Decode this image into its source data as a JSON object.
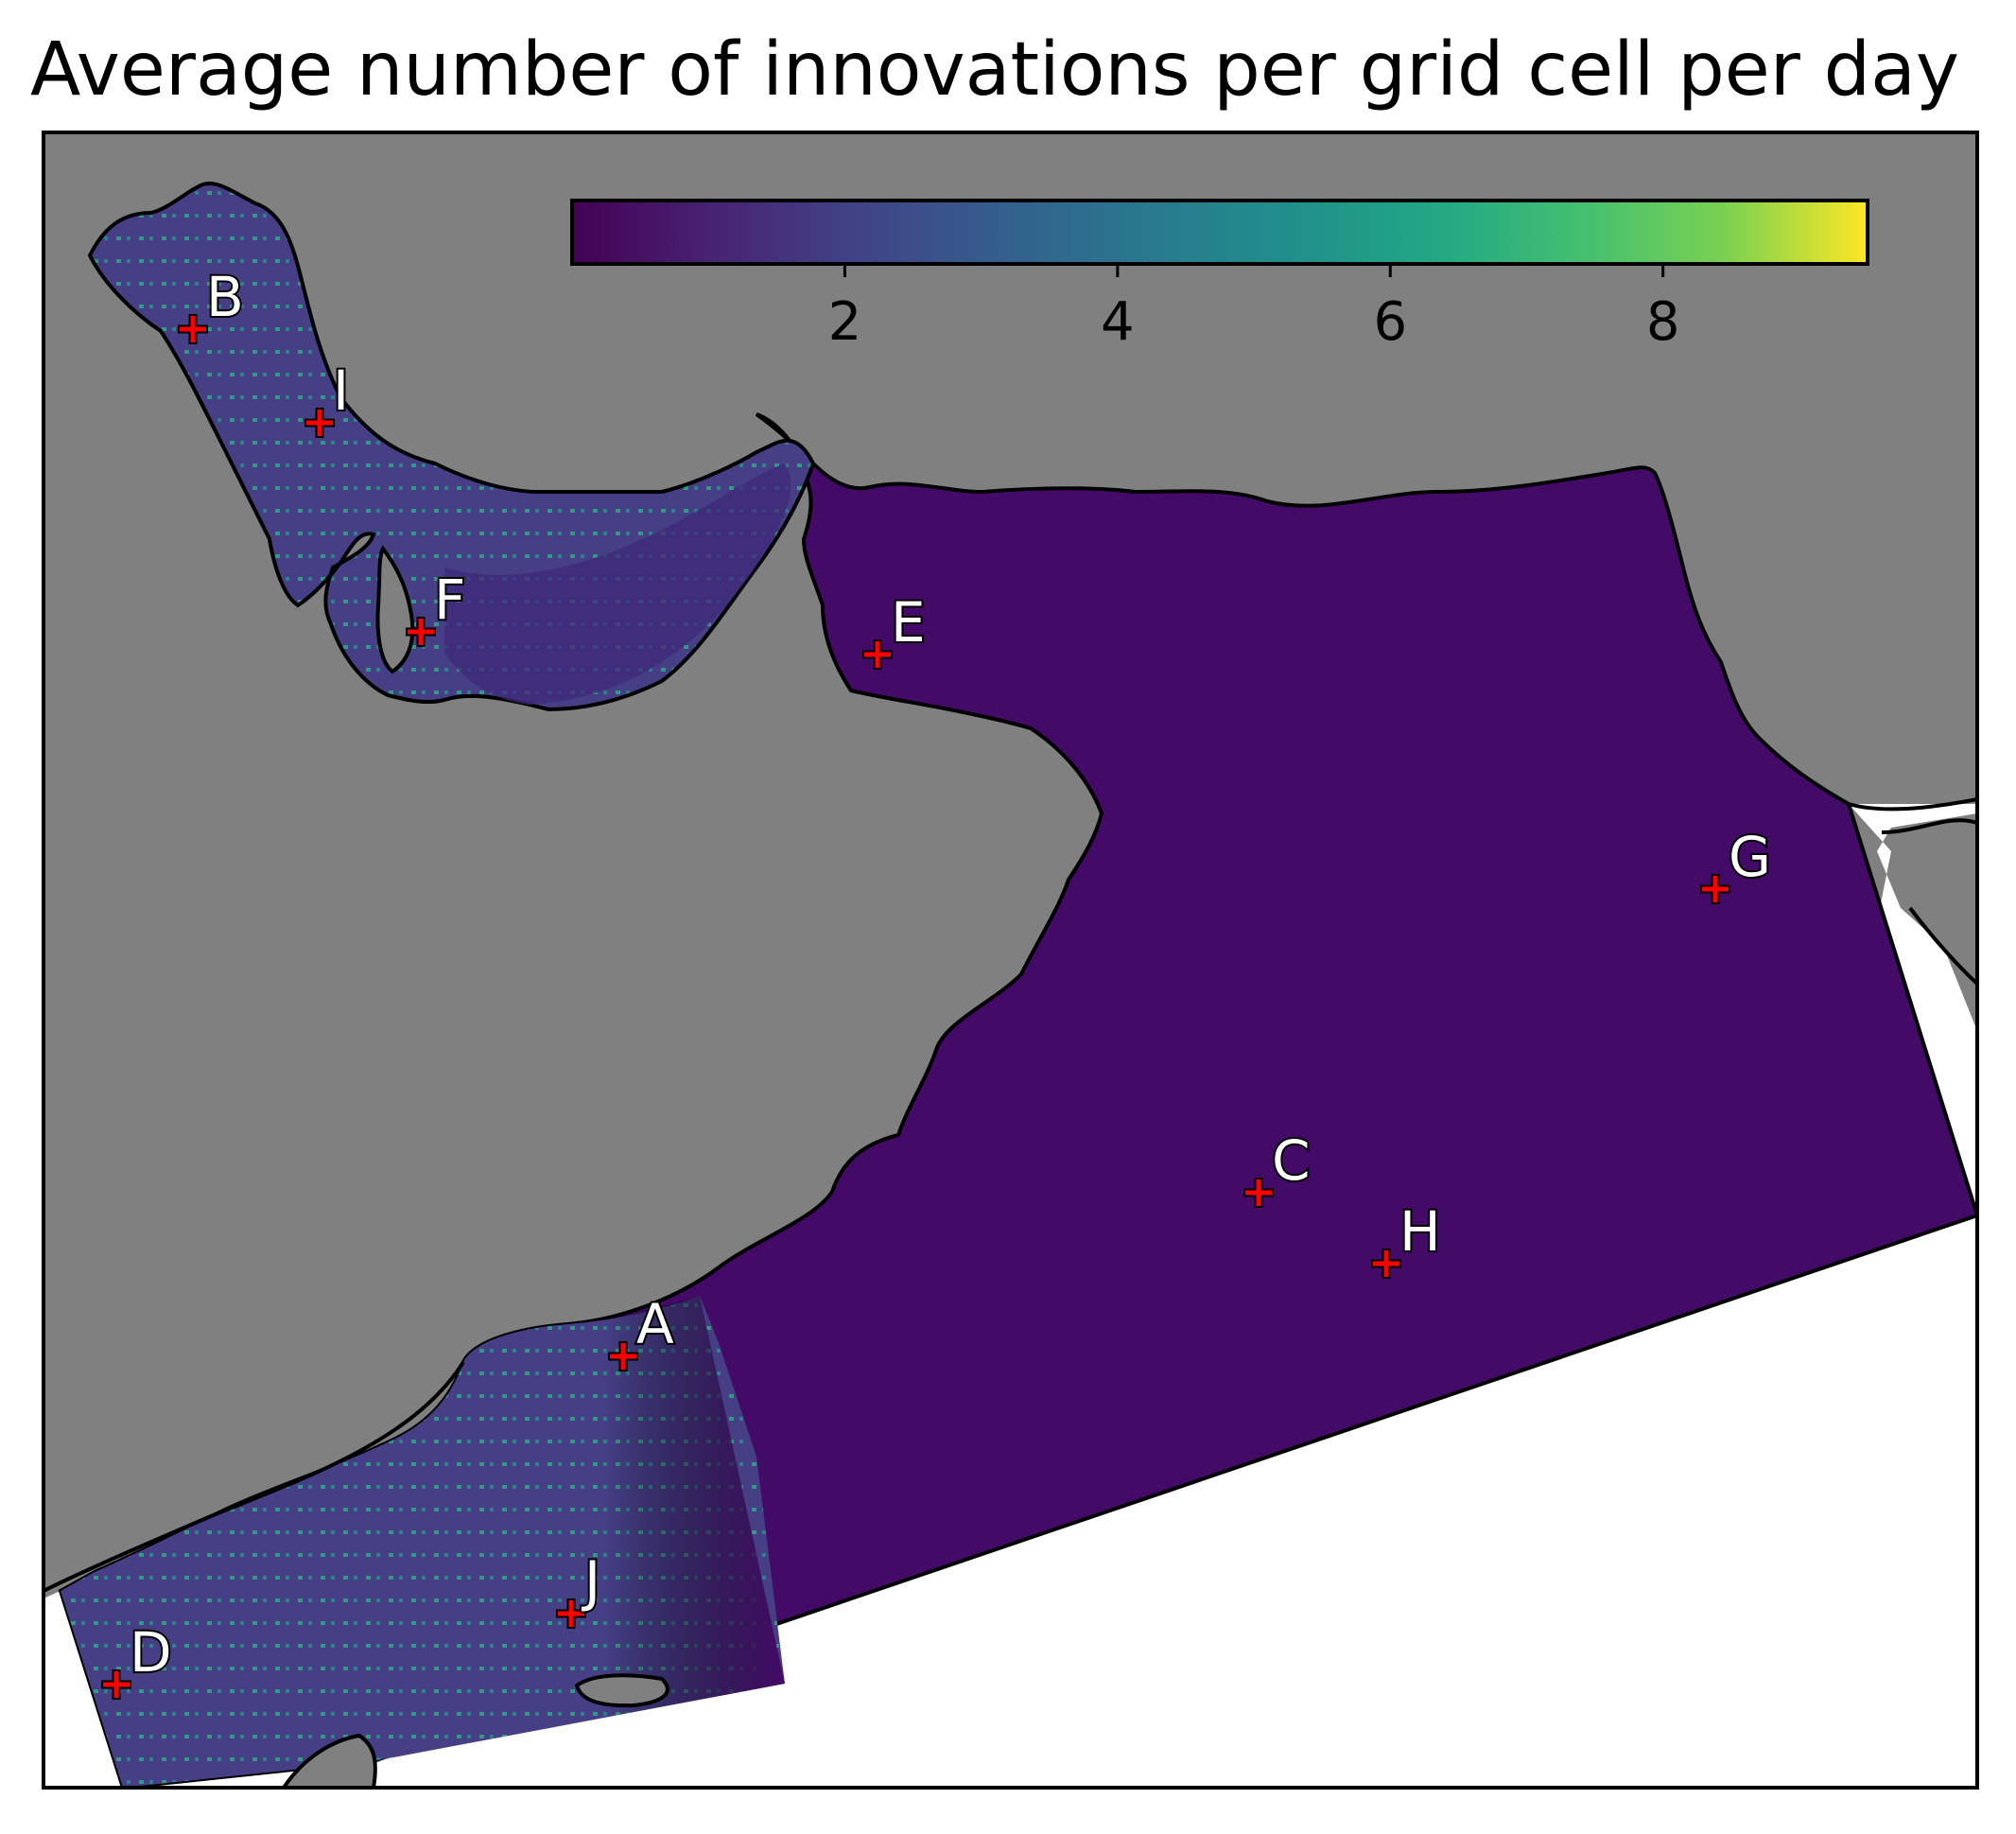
{
  "title": "Average number of innovations per grid cell per day",
  "colorbar": {
    "colormap": "viridis",
    "min": 0,
    "max": 9.5,
    "ticks": [
      {
        "value": 2,
        "label": "2"
      },
      {
        "value": 4,
        "label": "4"
      },
      {
        "value": 6,
        "label": "6"
      },
      {
        "value": 8,
        "label": "8"
      }
    ]
  },
  "colors": {
    "land": "#808080",
    "outside_domain": "#ffffff",
    "ocean_low": "#440a68",
    "ocean_mid": "#3f4a8a",
    "marker": "#ff0000",
    "coastline": "#000000"
  },
  "sites": [
    {
      "label": "A"
    },
    {
      "label": "B"
    },
    {
      "label": "C"
    },
    {
      "label": "D"
    },
    {
      "label": "E"
    },
    {
      "label": "F"
    },
    {
      "label": "G"
    },
    {
      "label": "H"
    },
    {
      "label": "I"
    },
    {
      "label": "J"
    }
  ]
}
